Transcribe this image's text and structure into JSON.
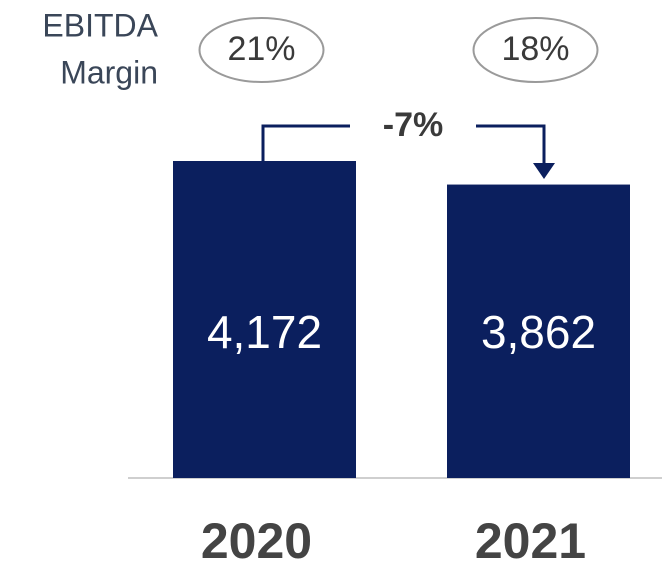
{
  "chart_data": {
    "type": "bar",
    "categories": [
      "2020",
      "2021"
    ],
    "values": [
      4172,
      3862
    ],
    "value_labels": [
      "4,172",
      "3,862"
    ],
    "color": "#0b1f5e",
    "margin_title": [
      "EBITDA",
      "Margin"
    ],
    "margin_labels": [
      "21%",
      "18%"
    ],
    "change_label": "-7%"
  }
}
